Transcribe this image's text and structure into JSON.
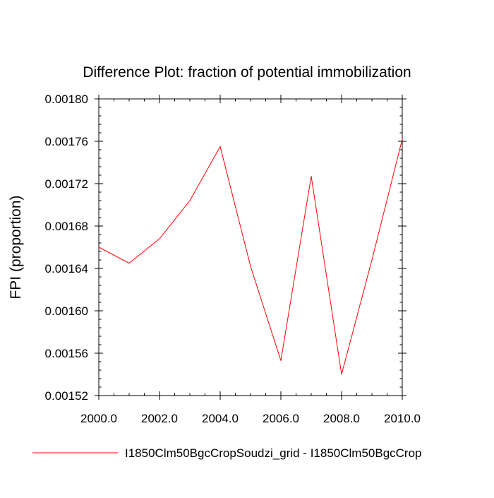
{
  "chart_data": {
    "type": "line",
    "title": "Difference Plot: fraction of potential immobilization",
    "xlabel": "",
    "ylabel": "FPI  (proportion)",
    "xlim": [
      2000.0,
      2010.0
    ],
    "ylim": [
      0.00152,
      0.0018
    ],
    "x_major_ticks": [
      2000.0,
      2002.0,
      2004.0,
      2006.0,
      2008.0,
      2010.0
    ],
    "x_tick_labels": [
      "2000.0",
      "2002.0",
      "2004.0",
      "2006.0",
      "2008.0",
      "2010.0"
    ],
    "x_minor_step": 0.5,
    "y_major_ticks": [
      0.00152,
      0.00156,
      0.0016,
      0.00164,
      0.00168,
      0.00172,
      0.00176,
      0.0018
    ],
    "y_tick_labels": [
      "0.00152",
      "0.00156",
      "0.00160",
      "0.00164",
      "0.00168",
      "0.00172",
      "0.00176",
      "0.00180"
    ],
    "y_minor_step": 8e-06,
    "grid": false,
    "legend_position": "bottom",
    "series": [
      {
        "name": "I1850Clm50BgcCropSoudzi_grid - I1850Clm50BgcCrop",
        "color": "#ff0000",
        "x": [
          2000,
          2001,
          2002,
          2003,
          2004,
          2005,
          2006,
          2007,
          2008,
          2009,
          2010
        ],
        "y": [
          0.00166,
          0.001645,
          0.001668,
          0.001704,
          0.001755,
          0.001642,
          0.001553,
          0.001727,
          0.00154,
          0.001648,
          0.001762
        ]
      }
    ]
  }
}
